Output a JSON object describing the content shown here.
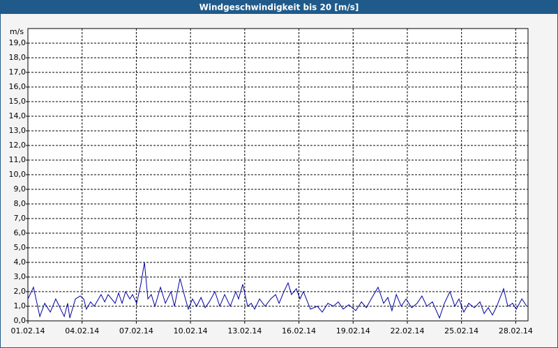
{
  "chart_data": {
    "type": "line",
    "title": "Windgeschwindigkeit bis 20 [m/s]",
    "y_label": "m/s",
    "xlim": [
      0,
      27.68
    ],
    "ylim": [
      0,
      20
    ],
    "grid": true,
    "xticks": [
      {
        "value": 0,
        "label": "01.02.14"
      },
      {
        "value": 3,
        "label": "04.02.14"
      },
      {
        "value": 6,
        "label": "07.02.14"
      },
      {
        "value": 9,
        "label": "10.02.14"
      },
      {
        "value": 12,
        "label": "13.02.14"
      },
      {
        "value": 15,
        "label": "16.02.14"
      },
      {
        "value": 18,
        "label": "19.02.14"
      },
      {
        "value": 21,
        "label": "22.02.14"
      },
      {
        "value": 24,
        "label": "25.02.14"
      },
      {
        "value": 27,
        "label": "28.02.14"
      }
    ],
    "yticks": [
      {
        "value": 0,
        "label": "0,0"
      },
      {
        "value": 1,
        "label": "1,0"
      },
      {
        "value": 2,
        "label": "2,0"
      },
      {
        "value": 3,
        "label": "3,0"
      },
      {
        "value": 4,
        "label": "4,0"
      },
      {
        "value": 5,
        "label": "5,0"
      },
      {
        "value": 6,
        "label": "6,0"
      },
      {
        "value": 7,
        "label": "7,0"
      },
      {
        "value": 8,
        "label": "8,0"
      },
      {
        "value": 9,
        "label": "9,0"
      },
      {
        "value": 10,
        "label": "10,0"
      },
      {
        "value": 11,
        "label": "11,0"
      },
      {
        "value": 12,
        "label": "12,0"
      },
      {
        "value": 13,
        "label": "13,0"
      },
      {
        "value": 14,
        "label": "14,0"
      },
      {
        "value": 15,
        "label": "15,0"
      },
      {
        "value": 16,
        "label": "16,0"
      },
      {
        "value": 17,
        "label": "17,0"
      },
      {
        "value": 18,
        "label": "18,0"
      },
      {
        "value": 19,
        "label": "19,0"
      }
    ],
    "x": [
      0,
      0.31,
      0.66,
      0.93,
      1.24,
      1.54,
      2.01,
      2.2,
      2.32,
      2.63,
      2.9,
      3.09,
      3.24,
      3.47,
      3.67,
      4.05,
      4.25,
      4.44,
      4.83,
      5.02,
      5.21,
      5.41,
      5.64,
      5.79,
      6.02,
      6.25,
      6.45,
      6.64,
      6.83,
      7.03,
      7.34,
      7.61,
      7.92,
      8.11,
      8.42,
      8.65,
      8.88,
      9.11,
      9.34,
      9.58,
      9.81,
      10.04,
      10.35,
      10.62,
      10.89,
      11.2,
      11.51,
      11.66,
      11.89,
      12.16,
      12.36,
      12.55,
      12.82,
      13.13,
      13.44,
      13.71,
      13.9,
      14.17,
      14.4,
      14.59,
      14.86,
      15.06,
      15.25,
      15.64,
      16.02,
      16.29,
      16.6,
      16.91,
      17.18,
      17.45,
      17.76,
      18.15,
      18.46,
      18.73,
      19.0,
      19.38,
      19.69,
      19.92,
      20.15,
      20.39,
      20.66,
      20.93,
      21.24,
      21.54,
      21.81,
      22.08,
      22.39,
      22.78,
      23.05,
      23.36,
      23.63,
      23.86,
      24.13,
      24.4,
      24.71,
      25.02,
      25.25,
      25.48,
      25.71,
      25.95,
      26.33,
      26.56,
      26.83,
      27.03,
      27.34,
      27.61
    ],
    "series": [
      {
        "color": "#0000a0",
        "values": [
          1.5,
          2.3,
          0.3,
          1.2,
          0.6,
          1.5,
          0.3,
          1.2,
          0.2,
          1.5,
          1.7,
          1.5,
          0.8,
          1.3,
          1.0,
          1.8,
          1.3,
          1.8,
          1.2,
          1.9,
          1.2,
          2.0,
          1.5,
          1.8,
          1.2,
          2.5,
          4.0,
          1.5,
          1.8,
          1.0,
          2.3,
          1.2,
          2.0,
          1.0,
          2.9,
          1.8,
          0.8,
          1.5,
          1.0,
          1.6,
          0.9,
          1.3,
          2.0,
          1.0,
          1.8,
          1.0,
          2.0,
          1.5,
          2.5,
          1.0,
          1.2,
          0.8,
          1.5,
          1.0,
          1.5,
          1.8,
          1.2,
          2.0,
          2.6,
          1.8,
          2.2,
          1.5,
          2.0,
          0.8,
          1.0,
          0.6,
          1.2,
          1.0,
          1.3,
          0.8,
          1.1,
          0.7,
          1.3,
          0.9,
          1.5,
          2.3,
          1.2,
          1.6,
          0.7,
          1.8,
          1.0,
          1.5,
          0.9,
          1.2,
          1.7,
          1.0,
          1.3,
          0.2,
          1.2,
          2.0,
          1.0,
          1.5,
          0.6,
          1.2,
          0.9,
          1.3,
          0.5,
          0.9,
          0.4,
          1.0,
          2.2,
          1.0,
          1.2,
          0.8,
          1.5,
          1.0
        ]
      }
    ]
  }
}
